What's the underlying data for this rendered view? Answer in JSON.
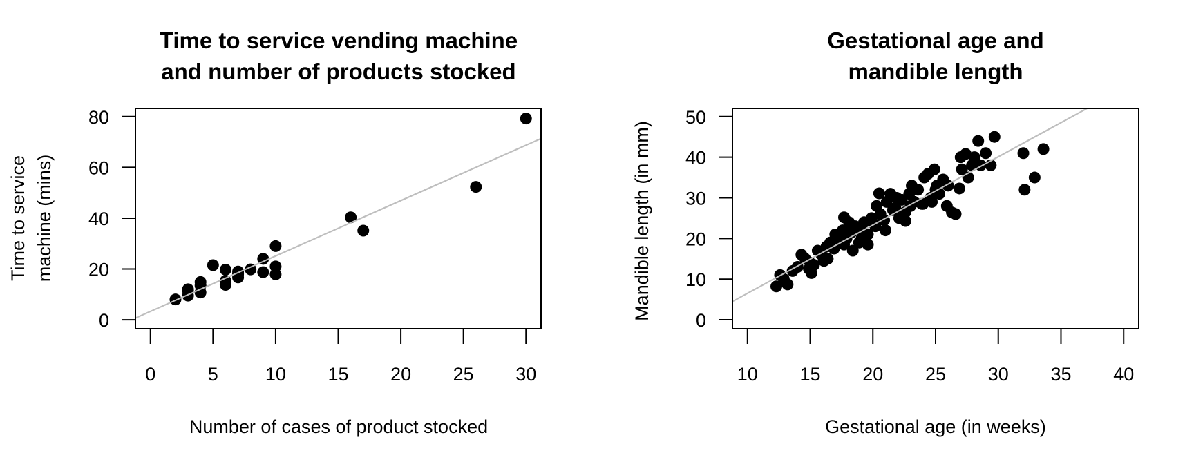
{
  "chart_data": [
    {
      "type": "scatter",
      "title": "Time to service vending machine and number of products stocked",
      "title_lines": [
        "Time to service vending machine",
        "and number of products stocked"
      ],
      "xlabel": "Number of cases of product stocked",
      "ylabel": "Time to service machine (mins)",
      "ylabel_lines": [
        "Time to service",
        "machine (mins)"
      ],
      "xlim": [
        -1.2,
        31.2
      ],
      "ylim": [
        -3.5,
        83.2
      ],
      "xticks": [
        0,
        5,
        10,
        15,
        20,
        25,
        30
      ],
      "yticks": [
        0,
        20,
        40,
        60,
        80
      ],
      "grid": false,
      "legend": null,
      "x": [
        7,
        3,
        3,
        4,
        6,
        7,
        2,
        7,
        30,
        5,
        16,
        10,
        4,
        6,
        9,
        10,
        6,
        7,
        3,
        17,
        10,
        26,
        9,
        8,
        4
      ],
      "y": [
        16.68,
        11.5,
        12.03,
        14.88,
        13.75,
        18.11,
        8.0,
        17.83,
        79.24,
        21.5,
        40.33,
        21.0,
        13.5,
        19.75,
        24.0,
        29.0,
        15.35,
        19.0,
        9.5,
        35.1,
        17.9,
        52.32,
        18.75,
        19.83,
        10.75
      ],
      "fit_line": {
        "intercept": 3.32,
        "slope": 2.18,
        "color": "#bebebe"
      },
      "point_color": "#000000"
    },
    {
      "type": "scatter",
      "title": "Gestational age and mandible length",
      "title_lines": [
        "Gestational age and",
        "mandible length"
      ],
      "xlabel": "Gestational age (in weeks)",
      "ylabel": "Mandible length (in mm)",
      "xlim": [
        8.8,
        41.2
      ],
      "ylim": [
        -2.2,
        52.0
      ],
      "xticks": [
        10,
        15,
        20,
        25,
        30,
        35,
        40
      ],
      "yticks": [
        0,
        10,
        20,
        30,
        40,
        50
      ],
      "grid": false,
      "legend": null,
      "x": [
        12.3,
        12.6,
        13.2,
        12.9,
        13.6,
        14.0,
        14.3,
        14.6,
        14.9,
        15.0,
        15.3,
        15.6,
        15.9,
        16.1,
        16.3,
        16.6,
        16.9,
        17.0,
        17.3,
        17.6,
        17.7,
        17.9,
        18.1,
        18.3,
        18.6,
        18.9,
        19.0,
        19.3,
        19.6,
        19.9,
        20.1,
        20.3,
        20.5,
        20.6,
        20.9,
        21.1,
        21.4,
        21.6,
        21.9,
        22.1,
        22.3,
        22.6,
        22.9,
        23.1,
        23.3,
        23.6,
        23.9,
        24.1,
        24.4,
        24.6,
        24.9,
        25.1,
        25.3,
        25.6,
        25.9,
        26.3,
        26.6,
        26.9,
        27.0,
        27.1,
        27.4,
        27.6,
        27.9,
        28.1,
        28.4,
        28.6,
        29.0,
        29.4,
        29.7,
        32.0,
        32.1,
        32.9,
        33.6,
        17.7,
        19.1,
        21.0,
        22.6,
        24.0,
        25.0,
        26.0,
        15.1,
        16.4,
        18.4,
        20.2,
        23.0,
        24.7,
        19.6,
        21.8
      ],
      "y": [
        8.2,
        11.0,
        8.7,
        10.0,
        12.0,
        13.0,
        16.0,
        15.0,
        12.5,
        14.0,
        13.5,
        17.0,
        16.0,
        14.5,
        18.0,
        19.0,
        17.5,
        21.0,
        19.5,
        22.0,
        25.2,
        20.0,
        24.0,
        21.5,
        23.0,
        19.0,
        22.5,
        24.0,
        21.0,
        25.0,
        23.5,
        28.0,
        31.1,
        26.0,
        24.5,
        29.0,
        31.0,
        27.0,
        30.0,
        25.0,
        29.5,
        24.3,
        31.0,
        33.0,
        29.0,
        32.0,
        28.5,
        35.0,
        35.9,
        30.0,
        37.0,
        33.0,
        31.0,
        34.5,
        28.0,
        26.4,
        26.0,
        32.3,
        40.0,
        37.0,
        40.8,
        35.0,
        38.0,
        40.0,
        44.0,
        38.0,
        41.0,
        38.0,
        45.0,
        41.0,
        32.0,
        35.0,
        42.0,
        18.5,
        20.0,
        22.0,
        26.5,
        28.5,
        32.0,
        33.0,
        11.5,
        15.0,
        17.0,
        23.0,
        28.0,
        29.0,
        18.5,
        27.5
      ],
      "fit_line": {
        "intercept": -10.3,
        "slope": 1.68,
        "color": "#bebebe"
      },
      "point_color": "#000000"
    }
  ]
}
